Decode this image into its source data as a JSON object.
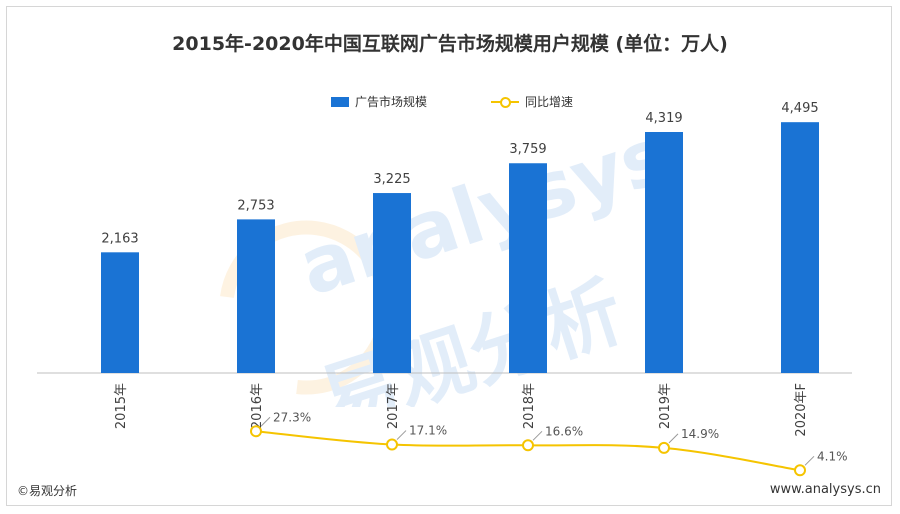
{
  "title": "2015年-2020年中国互联网广告市场规模用户规模 (单位：万人)",
  "footer": {
    "left": "©易观分析",
    "right": "www.analysys.cn"
  },
  "watermark": {
    "latin": "analysys",
    "cn": "易观分析"
  },
  "colors": {
    "bar": "#1a73d4",
    "line": "#f5c400",
    "axis": "#bfbfbf",
    "text": "#404040"
  },
  "chart_data": {
    "type": "bar",
    "title": "2015年-2020年中国互联网广告市场规模用户规模 (单位：万人)",
    "categories": [
      "2015年",
      "2016年",
      "2017年",
      "2018年",
      "2019年",
      "2020年F"
    ],
    "series": [
      {
        "name": "广告市场规模",
        "type": "bar",
        "values": [
          2163,
          2753,
          3225,
          3759,
          4319,
          4495
        ],
        "labels": [
          "2,163",
          "2,753",
          "3,225",
          "3,759",
          "4,319",
          "4,495"
        ]
      },
      {
        "name": "同比增速",
        "type": "line",
        "values": [
          null,
          27.3,
          17.1,
          16.6,
          14.9,
          4.1
        ],
        "labels": [
          "",
          "27.3%",
          "17.1%",
          "16.6%",
          "14.9%",
          "4.1%"
        ]
      }
    ],
    "legend_position": "top-center",
    "grid": false
  }
}
